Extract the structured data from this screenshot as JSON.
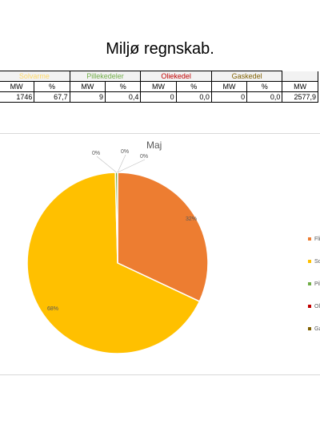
{
  "page": {
    "title": "Miljø regnskab."
  },
  "table": {
    "groups": [
      {
        "label": "Solvarme",
        "color": "#ffd966"
      },
      {
        "label": "Pillekedeler",
        "color": "#70ad47"
      },
      {
        "label": "Oliekedel",
        "color": "#c00000"
      },
      {
        "label": "Gaskedel",
        "color": "#806000"
      },
      {
        "label": "",
        "color": "#000000"
      }
    ],
    "subheaders": [
      "MW",
      "%",
      "MW",
      "%",
      "MW",
      "%",
      "MW",
      "%",
      "MW"
    ],
    "row": [
      "1746",
      "67,7",
      "9",
      "0,4",
      "0",
      "0,0",
      "0",
      "0,0",
      "2577,9"
    ]
  },
  "chart_data": {
    "type": "pie",
    "title": "Maj",
    "series": [
      {
        "name": "Fli",
        "value": 32,
        "label": "32%",
        "color": "#ed7d31"
      },
      {
        "name": "So",
        "value": 67.7,
        "label": "68%",
        "color": "#ffc000"
      },
      {
        "name": "Pil",
        "value": 0.4,
        "label": "0%",
        "color": "#70ad47"
      },
      {
        "name": "Ol",
        "value": 0.0,
        "label": "0%",
        "color": "#c00000"
      },
      {
        "name": "Ga",
        "value": 0.0,
        "label": "0%",
        "color": "#806000"
      }
    ],
    "legend_position": "right"
  }
}
